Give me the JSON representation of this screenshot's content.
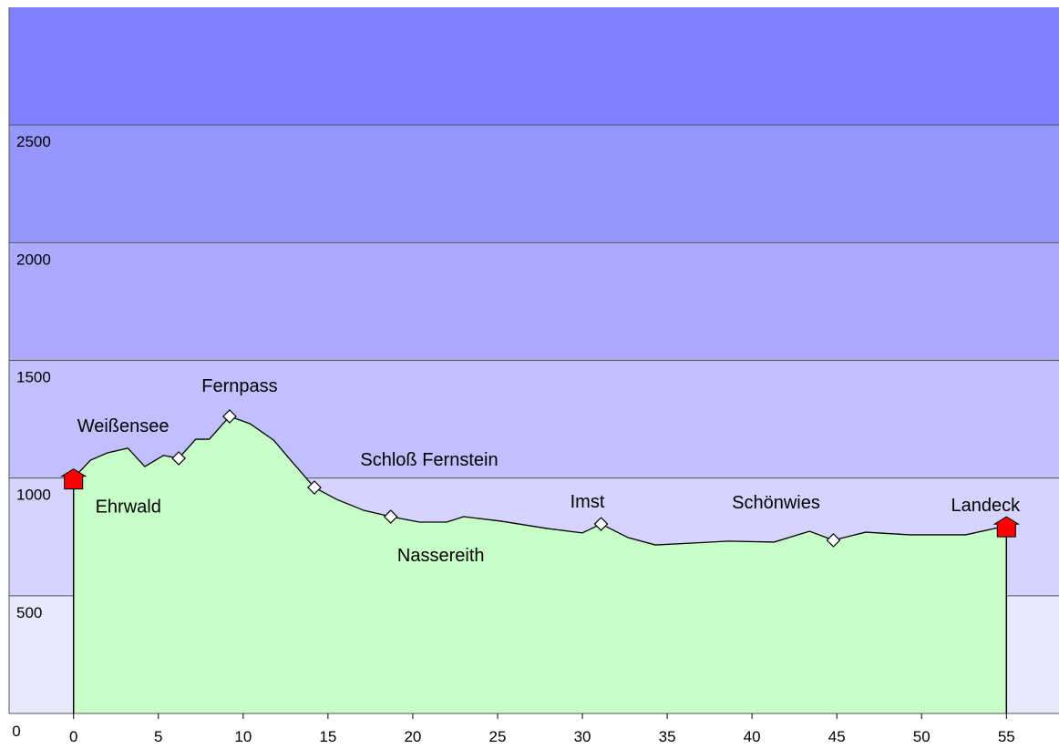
{
  "chart_data": {
    "type": "area",
    "x": [
      0,
      1,
      2,
      3.2,
      4.2,
      5.3,
      6.2,
      7.2,
      8,
      9.2,
      10.4,
      11.8,
      12.8,
      14.2,
      15.5,
      17.1,
      18.7,
      20.4,
      22,
      23,
      25.2,
      27.9,
      30,
      31.1,
      32.7,
      34.3,
      36.5,
      38.6,
      41.3,
      43.4,
      44.8,
      46.7,
      49.3,
      52.6,
      55
    ],
    "values": [
      1000,
      1076,
      1107,
      1127,
      1049,
      1096,
      1084,
      1165,
      1165,
      1262,
      1231,
      1161,
      1076,
      960,
      910,
      863,
      836,
      813,
      813,
      836,
      817,
      786,
      767,
      805,
      747,
      716,
      724,
      732,
      728,
      774,
      736,
      770,
      759,
      759,
      797
    ],
    "color": "#c8ffc8",
    "line_color": "#000000",
    "xlim": [
      -3.8,
      58.1
    ],
    "xticks": [
      0,
      5,
      10,
      15,
      20,
      25,
      30,
      35,
      40,
      45,
      50,
      55
    ],
    "ylim": [
      0,
      3000
    ],
    "yticks": [
      0,
      500,
      1000,
      1500,
      2000,
      2500
    ],
    "band_colors": [
      "#e8e8ff",
      "#d4d4ff",
      "#c0c0ff",
      "#aaaaff",
      "#9696ff",
      "#8080ff"
    ],
    "waypoints": [
      {
        "name": "Ehrwald",
        "x": 0,
        "y": 1000,
        "marker": "flag"
      },
      {
        "name": "Weißensee",
        "x": 6.2,
        "y": 1084,
        "marker": "diamond"
      },
      {
        "name": "Fernpass",
        "x": 9.2,
        "y": 1262,
        "marker": "diamond"
      },
      {
        "name": "Schloß Fernstein",
        "x": 14.2,
        "y": 960,
        "marker": "diamond"
      },
      {
        "name": "Nassereith",
        "x": 18.7,
        "y": 836,
        "marker": "diamond"
      },
      {
        "name": "Imst",
        "x": 31.1,
        "y": 805,
        "marker": "diamond"
      },
      {
        "name": "Schönwies",
        "x": 44.8,
        "y": 736,
        "marker": "diamond"
      },
      {
        "name": "Landeck",
        "x": 55,
        "y": 797,
        "marker": "flag"
      }
    ]
  }
}
